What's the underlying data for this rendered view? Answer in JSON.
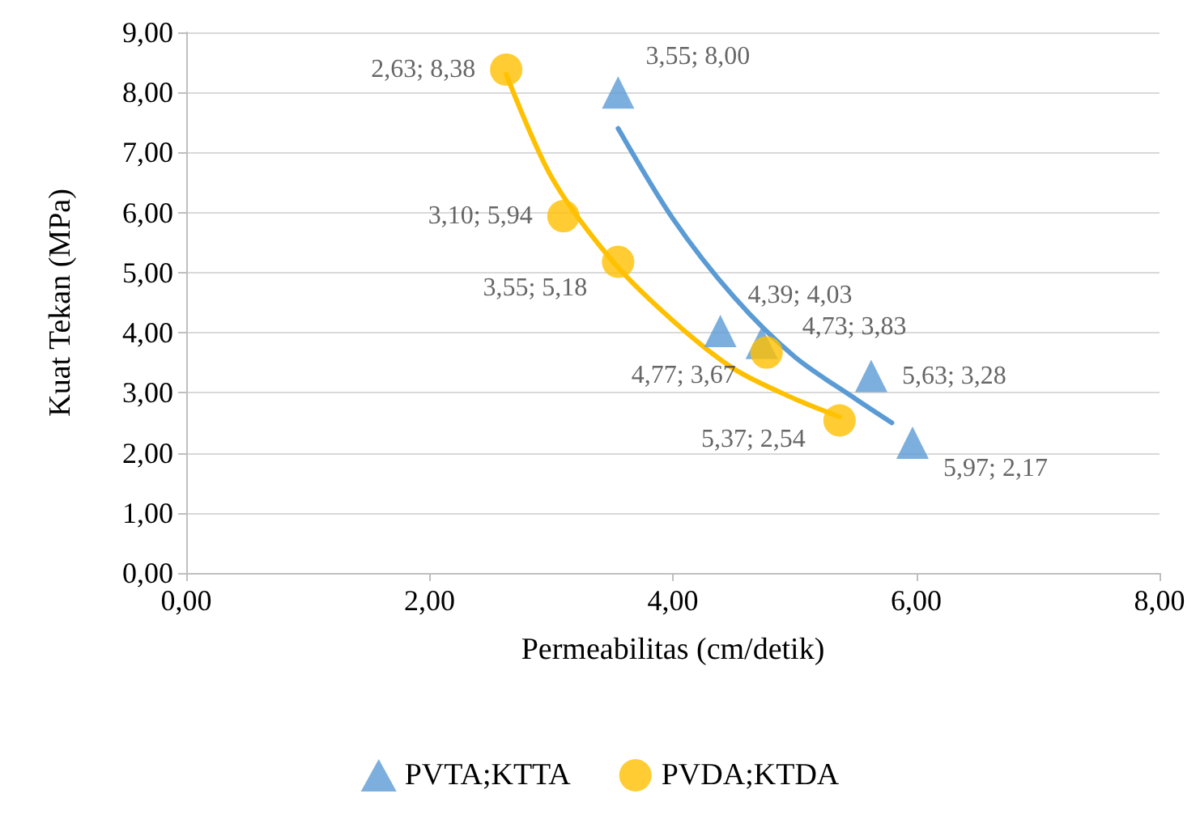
{
  "chart_data": {
    "type": "scatter",
    "xlabel": "Permeabilitas (cm/detik)",
    "ylabel": "Kuat Tekan (MPa)",
    "xlim": [
      0,
      8
    ],
    "ylim": [
      0,
      9
    ],
    "xticks": [
      {
        "value": 0,
        "label": "0,00"
      },
      {
        "value": 2,
        "label": "2,00"
      },
      {
        "value": 4,
        "label": "4,00"
      },
      {
        "value": 6,
        "label": "6,00"
      },
      {
        "value": 8,
        "label": "8,00"
      }
    ],
    "yticks": [
      {
        "value": 0,
        "label": "0,00"
      },
      {
        "value": 1,
        "label": "1,00"
      },
      {
        "value": 2,
        "label": "2,00"
      },
      {
        "value": 3,
        "label": "3,00"
      },
      {
        "value": 4,
        "label": "4,00"
      },
      {
        "value": 5,
        "label": "5,00"
      },
      {
        "value": 6,
        "label": "6,00"
      },
      {
        "value": 7,
        "label": "7,00"
      },
      {
        "value": 8,
        "label": "8,00"
      },
      {
        "value": 9,
        "label": "9,00"
      }
    ],
    "grid": "y",
    "legend": "bottom",
    "series": [
      {
        "name": "PVTA;KTTA",
        "color": "#5b9bd5",
        "marker": "triangle",
        "x": [
          3.55,
          4.39,
          4.73,
          5.63,
          5.97
        ],
        "values": [
          8.0,
          4.03,
          3.83,
          3.28,
          2.17
        ],
        "value_labels": [
          "3,55; 8,00",
          "4,39; 4,03",
          "4,73; 3,83",
          "5,63; 3,28",
          "5,97; 2,17"
        ]
      },
      {
        "name": "PVDA;KTDA",
        "color": "#ffc000",
        "marker": "circle",
        "x": [
          2.63,
          3.1,
          3.55,
          4.77,
          5.37
        ],
        "values": [
          8.38,
          5.94,
          5.18,
          3.67,
          2.54
        ],
        "value_labels": [
          "2,63; 8,38",
          "3,10; 5,94",
          "3,55; 5,18",
          "4,77; 3,67",
          "5,37; 2,54"
        ]
      },
      {
        "type": "line",
        "color": "#5b9bd5",
        "marker": "none",
        "line_style": "solid",
        "x": [
          3.55,
          4.0,
          4.5,
          5.0,
          5.5,
          5.8
        ],
        "values": [
          7.4,
          5.9,
          4.6,
          3.6,
          2.9,
          2.5
        ]
      },
      {
        "type": "line",
        "color": "#ffc000",
        "marker": "none",
        "line_style": "solid",
        "x": [
          2.63,
          3.0,
          3.5,
          4.0,
          4.5,
          5.0,
          5.37
        ],
        "values": [
          8.3,
          6.6,
          5.2,
          4.2,
          3.4,
          2.9,
          2.6
        ]
      }
    ]
  }
}
